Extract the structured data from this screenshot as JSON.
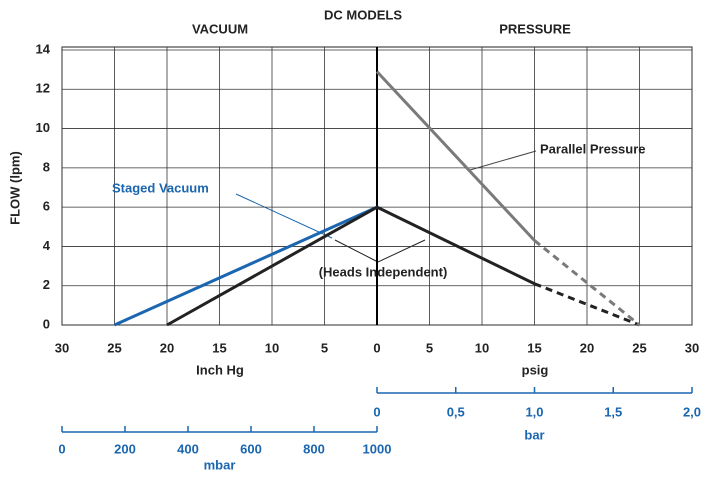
{
  "chart_data": {
    "type": "line",
    "title": "DC MODELS",
    "left_label": "VACUUM",
    "right_label": "PRESSURE",
    "ylabel": "FLOW (lpm)",
    "xlabel_left": "Inch Hg",
    "xlabel_right": "psig",
    "xlim": [
      -30,
      30
    ],
    "ylim": [
      0,
      14
    ],
    "xticks": [
      {
        "value": -30,
        "label": "30"
      },
      {
        "value": -25,
        "label": "25"
      },
      {
        "value": -20,
        "label": "20"
      },
      {
        "value": -15,
        "label": "15"
      },
      {
        "value": -10,
        "label": "10"
      },
      {
        "value": -5,
        "label": "5"
      },
      0,
      5,
      10,
      15,
      20,
      25,
      30
    ],
    "yticks": [
      0,
      2,
      4,
      6,
      8,
      10,
      12,
      14
    ],
    "grid": true,
    "series": [
      {
        "name": "Staged Vacuum",
        "color": "#1a66b0",
        "x": [
          -25,
          0
        ],
        "values": [
          0,
          6
        ]
      },
      {
        "name": "(Heads Independent)",
        "color": "#222222",
        "x": [
          -20,
          0,
          15,
          25
        ],
        "values": [
          0,
          6,
          2.1,
          0
        ],
        "dashed_from_index": 2
      },
      {
        "name": "Parallel Pressure",
        "color": "#7a7a7a",
        "x": [
          0,
          15,
          25
        ],
        "values": [
          12.9,
          4.3,
          0
        ],
        "dashed_from_index": 1
      }
    ],
    "secondary_axes": [
      {
        "label": "bar",
        "color": "#1a66b0",
        "lim": [
          0,
          2
        ],
        "ticks": [
          0,
          {
            "value": 0.5,
            "label": "0,5"
          },
          {
            "value": 1,
            "label": "1,0"
          },
          {
            "value": 1.5,
            "label": "1,5"
          },
          {
            "value": 2,
            "label": "2,0"
          }
        ]
      },
      {
        "label": "mbar",
        "color": "#1a66b0",
        "lim": [
          0,
          1000
        ],
        "ticks": [
          0,
          200,
          400,
          600,
          800,
          1000
        ]
      }
    ]
  }
}
